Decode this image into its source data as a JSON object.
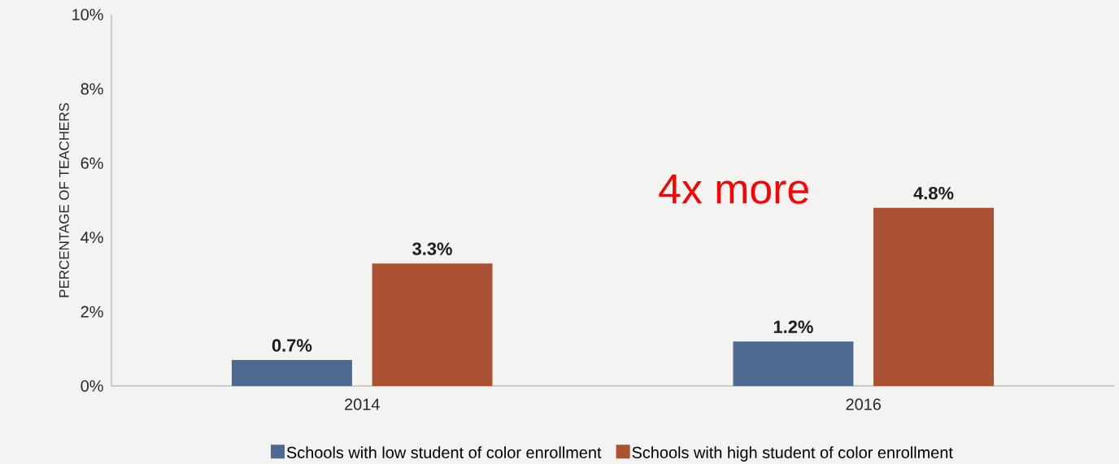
{
  "chart_data": {
    "type": "bar",
    "ylabel": "PERCENTAGE OF TEACHERS",
    "categories": [
      "2014",
      "2016"
    ],
    "series": [
      {
        "name": "Schools with low student of color enrollment",
        "color": "#4f6a92",
        "values": [
          0.7,
          1.2
        ],
        "value_labels": [
          "0.7%",
          "1.2%"
        ]
      },
      {
        "name": "Schools with high student of color enrollment",
        "color": "#ab5234",
        "values": [
          3.3,
          4.8
        ],
        "value_labels": [
          "3.3%",
          "4.8%"
        ]
      }
    ],
    "ylim": [
      0,
      10
    ],
    "yticks": [
      {
        "value": 0,
        "label": "0%"
      },
      {
        "value": 2,
        "label": "2%"
      },
      {
        "value": 4,
        "label": "4%"
      },
      {
        "value": 6,
        "label": "6%"
      },
      {
        "value": 8,
        "label": "8%"
      },
      {
        "value": 10,
        "label": "10%"
      }
    ],
    "legend": "bottom",
    "annotations": [
      "4x more"
    ]
  }
}
